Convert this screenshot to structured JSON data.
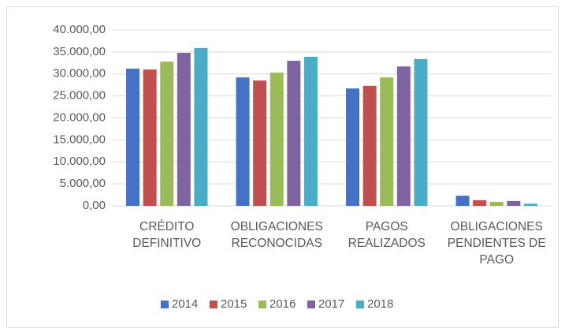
{
  "chart_data": {
    "type": "bar",
    "categories": [
      "CRÉDITO DEFINITIVO",
      "OBLIGACIONES RECONOCIDAS",
      "PAGOS REALIZADOS",
      "OBLIGACIONES PENDIENTES DE PAGO"
    ],
    "series": [
      {
        "name": "2014",
        "color": "#4472c4",
        "values": [
          31200,
          29200,
          26700,
          2300
        ]
      },
      {
        "name": "2015",
        "color": "#c0504d",
        "values": [
          31000,
          28500,
          27300,
          1300
        ]
      },
      {
        "name": "2016",
        "color": "#9bbb59",
        "values": [
          32800,
          30300,
          29200,
          900
        ]
      },
      {
        "name": "2017",
        "color": "#8064a2",
        "values": [
          34800,
          33000,
          31700,
          1100
        ]
      },
      {
        "name": "2018",
        "color": "#4bacc6",
        "values": [
          35900,
          33900,
          33400,
          500
        ]
      }
    ],
    "ylim": [
      0,
      40000
    ],
    "yticks": [
      {
        "value": 0,
        "label": "0,00"
      },
      {
        "value": 5000,
        "label": "5.000,00"
      },
      {
        "value": 10000,
        "label": "10.000,00"
      },
      {
        "value": 15000,
        "label": "15.000,00"
      },
      {
        "value": 20000,
        "label": "20.000,00"
      },
      {
        "value": 25000,
        "label": "25.000,00"
      },
      {
        "value": 30000,
        "label": "30.000,00"
      },
      {
        "value": 35000,
        "label": "35.000,00"
      },
      {
        "value": 40000,
        "label": "40.000,00"
      }
    ],
    "grid": true,
    "legend": "bottom"
  }
}
